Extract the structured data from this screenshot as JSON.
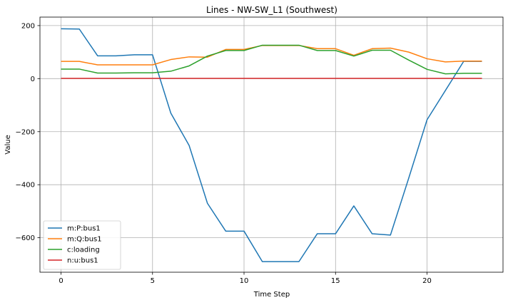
{
  "chart_data": {
    "type": "line",
    "title": "Lines - NW-SW_L1 (Southwest)",
    "xlabel": "Time Step",
    "ylabel": "Value",
    "xlim": [
      -1.15,
      24.15
    ],
    "ylim": [
      -730,
      232
    ],
    "x_ticks": [
      0,
      5,
      10,
      15,
      20
    ],
    "y_ticks": [
      -600,
      -400,
      -200,
      0,
      200
    ],
    "grid": true,
    "legend_position": "lower-left",
    "x": [
      0,
      1,
      2,
      3,
      4,
      5,
      6,
      7,
      8,
      9,
      10,
      11,
      12,
      13,
      14,
      15,
      16,
      17,
      18,
      19,
      20,
      21,
      22,
      23
    ],
    "series": [
      {
        "name": "m:P:bus1",
        "color": "#1f77b4",
        "values": [
          188,
          187,
          86,
          86,
          90,
          90,
          -130,
          -252,
          -470,
          -575,
          -575,
          -690,
          -690,
          -690,
          -585,
          -585,
          -480,
          -585,
          -590,
          -375,
          -155,
          -45,
          65,
          65
        ]
      },
      {
        "name": "m:Q:bus1",
        "color": "#ff7f0e",
        "values": [
          65,
          65,
          52,
          52,
          52,
          52,
          72,
          82,
          81,
          110,
          110,
          125,
          125,
          125,
          113,
          113,
          88,
          113,
          115,
          100,
          75,
          63,
          66,
          66
        ]
      },
      {
        "name": "c:loading",
        "color": "#2ca02c",
        "values": [
          36,
          36,
          21,
          21,
          22,
          22,
          28,
          48,
          85,
          106,
          106,
          126,
          126,
          126,
          106,
          106,
          85,
          107,
          107,
          70,
          35,
          18,
          20,
          20
        ]
      },
      {
        "name": "n:u:bus1",
        "color": "#d62728",
        "values": [
          1,
          1,
          1,
          1,
          1,
          1,
          1,
          1,
          1,
          1,
          1,
          1,
          1,
          1,
          1,
          1,
          1,
          1,
          1,
          1,
          1,
          1,
          1,
          1
        ]
      }
    ]
  }
}
